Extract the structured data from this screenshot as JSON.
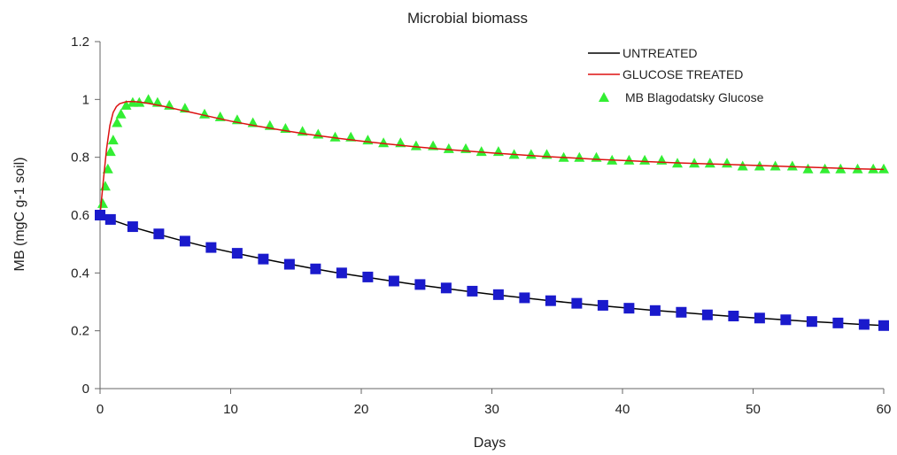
{
  "chart_data": {
    "type": "line",
    "title": "Microbial biomass",
    "xlabel": "Days",
    "ylabel": "MB (mgC g-1 soil)",
    "xlim": [
      0,
      60
    ],
    "ylim": [
      0,
      1.2
    ],
    "xticks": [
      "0",
      "10",
      "20",
      "30",
      "40",
      "50",
      "60"
    ],
    "yticks": [
      "0",
      "0.2",
      "0.4",
      "0.6",
      "0.8",
      "1",
      "1.2"
    ],
    "grid": false,
    "legend_position": "top-right",
    "series": [
      {
        "name": "UNTREATED",
        "kind": "line",
        "color": "#000000",
        "x": [
          0,
          1,
          2,
          3,
          4,
          5,
          6,
          8,
          10,
          12,
          14,
          16,
          18,
          20,
          22,
          24,
          26,
          28,
          30,
          32,
          34,
          36,
          38,
          40,
          42,
          44,
          46,
          48,
          50,
          52,
          54,
          56,
          58,
          60
        ],
        "y": [
          0.6,
          0.582,
          0.566,
          0.552,
          0.539,
          0.527,
          0.515,
          0.492,
          0.472,
          0.453,
          0.435,
          0.418,
          0.402,
          0.388,
          0.374,
          0.361,
          0.349,
          0.337,
          0.326,
          0.316,
          0.306,
          0.297,
          0.288,
          0.28,
          0.272,
          0.265,
          0.258,
          0.251,
          0.245,
          0.239,
          0.233,
          0.228,
          0.223,
          0.218
        ]
      },
      {
        "name": "",
        "kind": "marker",
        "marker": "square",
        "color": "#1a1acc",
        "x": [
          0,
          0.8,
          2.5,
          4.5,
          6.5,
          8.5,
          10.5,
          12.5,
          14.5,
          16.5,
          18.5,
          20.5,
          22.5,
          24.5,
          26.5,
          28.5,
          30.5,
          32.5,
          34.5,
          36.5,
          38.5,
          40.5,
          42.5,
          44.5,
          46.5,
          48.5,
          50.5,
          52.5,
          54.5,
          56.5,
          58.5,
          60
        ],
        "y": [
          0.6,
          0.585,
          0.56,
          0.535,
          0.51,
          0.488,
          0.468,
          0.448,
          0.43,
          0.414,
          0.4,
          0.386,
          0.372,
          0.36,
          0.348,
          0.337,
          0.325,
          0.314,
          0.304,
          0.295,
          0.288,
          0.278,
          0.27,
          0.264,
          0.255,
          0.251,
          0.244,
          0.238,
          0.232,
          0.227,
          0.222,
          0.218
        ]
      },
      {
        "name": "GLUCOSE TREATED",
        "kind": "line",
        "color": "#dd1111",
        "x": [
          0,
          0.25,
          0.5,
          0.75,
          1,
          1.25,
          1.5,
          2,
          2.5,
          3,
          3.5,
          4,
          5,
          6,
          7,
          8,
          10,
          12,
          14,
          16,
          18,
          20,
          22,
          24,
          26,
          28,
          30,
          32,
          34,
          36,
          38,
          40,
          42,
          44,
          46,
          48,
          50,
          52,
          54,
          56,
          58,
          60
        ],
        "y": [
          0.6,
          0.72,
          0.83,
          0.91,
          0.955,
          0.975,
          0.985,
          0.992,
          0.993,
          0.991,
          0.988,
          0.984,
          0.975,
          0.965,
          0.955,
          0.945,
          0.925,
          0.908,
          0.893,
          0.879,
          0.867,
          0.856,
          0.846,
          0.837,
          0.829,
          0.822,
          0.815,
          0.809,
          0.803,
          0.798,
          0.793,
          0.789,
          0.785,
          0.781,
          0.778,
          0.775,
          0.772,
          0.769,
          0.766,
          0.763,
          0.76,
          0.758
        ]
      },
      {
        "name": "MB Blagodatsky Glucose",
        "kind": "marker",
        "marker": "triangle",
        "color": "#33ee33",
        "x": [
          0,
          0.2,
          0.4,
          0.6,
          0.8,
          1.0,
          1.3,
          1.6,
          2.0,
          2.5,
          3.0,
          3.7,
          4.4,
          5.3,
          6.5,
          8.0,
          9.2,
          10.5,
          11.7,
          13.0,
          14.2,
          15.5,
          16.7,
          18.0,
          19.2,
          20.5,
          21.7,
          23.0,
          24.2,
          25.5,
          26.7,
          28.0,
          29.2,
          30.5,
          31.7,
          33.0,
          34.2,
          35.5,
          36.7,
          38.0,
          39.2,
          40.5,
          41.7,
          43.0,
          44.2,
          45.5,
          46.7,
          48.0,
          49.2,
          50.5,
          51.7,
          53.0,
          54.2,
          55.5,
          56.7,
          58.0,
          59.2,
          60.0
        ],
        "y": [
          0.6,
          0.64,
          0.7,
          0.76,
          0.82,
          0.86,
          0.92,
          0.95,
          0.98,
          0.99,
          0.99,
          1.0,
          0.99,
          0.98,
          0.97,
          0.95,
          0.94,
          0.93,
          0.92,
          0.91,
          0.9,
          0.89,
          0.88,
          0.87,
          0.87,
          0.86,
          0.85,
          0.85,
          0.84,
          0.84,
          0.83,
          0.83,
          0.82,
          0.82,
          0.81,
          0.81,
          0.81,
          0.8,
          0.8,
          0.8,
          0.79,
          0.79,
          0.79,
          0.79,
          0.78,
          0.78,
          0.78,
          0.78,
          0.77,
          0.77,
          0.77,
          0.77,
          0.76,
          0.76,
          0.76,
          0.76,
          0.76,
          0.76
        ]
      }
    ],
    "legend": [
      {
        "label": "UNTREATED",
        "symbol": "line",
        "color": "#000000"
      },
      {
        "label": "GLUCOSE TREATED",
        "symbol": "line",
        "color": "#dd1111"
      },
      {
        "label": "MB Blagodatsky Glucose",
        "symbol": "triangle",
        "color": "#33ee33"
      }
    ]
  }
}
